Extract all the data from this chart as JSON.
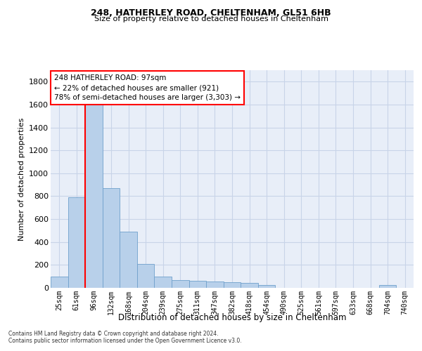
{
  "title1": "248, HATHERLEY ROAD, CHELTENHAM, GL51 6HB",
  "title2": "Size of property relative to detached houses in Cheltenham",
  "xlabel": "Distribution of detached houses by size in Cheltenham",
  "ylabel": "Number of detached properties",
  "categories": [
    "25sqm",
    "61sqm",
    "96sqm",
    "132sqm",
    "168sqm",
    "204sqm",
    "239sqm",
    "275sqm",
    "311sqm",
    "347sqm",
    "382sqm",
    "418sqm",
    "454sqm",
    "490sqm",
    "525sqm",
    "561sqm",
    "597sqm",
    "633sqm",
    "668sqm",
    "704sqm",
    "740sqm"
  ],
  "values": [
    100,
    790,
    1640,
    870,
    490,
    210,
    100,
    70,
    60,
    55,
    50,
    45,
    25,
    0,
    0,
    0,
    0,
    0,
    0,
    25,
    0
  ],
  "bar_color": "#b8d0ea",
  "bar_edge_color": "#6fa0cc",
  "vline_color": "red",
  "vline_x_index": 2,
  "annotation_text": "248 HATHERLEY ROAD: 97sqm\n← 22% of detached houses are smaller (921)\n78% of semi-detached houses are larger (3,303) →",
  "annotation_box_edgecolor": "red",
  "ylim": [
    0,
    1900
  ],
  "yticks": [
    0,
    200,
    400,
    600,
    800,
    1000,
    1200,
    1400,
    1600,
    1800
  ],
  "grid_color": "#c8d4e8",
  "background_color": "#e8eef8",
  "footer1": "Contains HM Land Registry data © Crown copyright and database right 2024.",
  "footer2": "Contains public sector information licensed under the Open Government Licence v3.0."
}
